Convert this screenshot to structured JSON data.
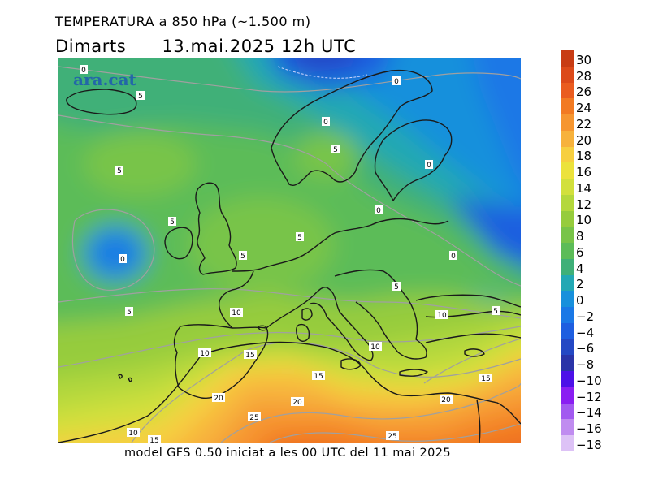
{
  "title": "TEMPERATURA a 850 hPa (~1.500 m)",
  "day": "Dimarts",
  "datetime": "13.mai.2025 12h UTC",
  "watermark": "ara.cat",
  "footer": "model GFS 0.50 iniciat a les 00 UTC del 11 mai 2025",
  "colorbar": {
    "bands": [
      {
        "label": "30",
        "color": "#c83c14"
      },
      {
        "label": "28",
        "color": "#dc4a1a"
      },
      {
        "label": "26",
        "color": "#ea5c1f"
      },
      {
        "label": "24",
        "color": "#f27a22"
      },
      {
        "label": "22",
        "color": "#f69630"
      },
      {
        "label": "20",
        "color": "#f7b23c"
      },
      {
        "label": "18",
        "color": "#f7cf40"
      },
      {
        "label": "16",
        "color": "#ece23c"
      },
      {
        "label": "14",
        "color": "#d2e03c"
      },
      {
        "label": "12",
        "color": "#b4d83c"
      },
      {
        "label": "10",
        "color": "#96cc3c"
      },
      {
        "label": "8",
        "color": "#78c448"
      },
      {
        "label": "6",
        "color": "#5cbc58"
      },
      {
        "label": "4",
        "color": "#3fb078"
      },
      {
        "label": "2",
        "color": "#22a8b4"
      },
      {
        "label": "0",
        "color": "#1890dc"
      },
      {
        "label": "−2",
        "color": "#1a78e6"
      },
      {
        "label": "−4",
        "color": "#1e5ee0"
      },
      {
        "label": "−6",
        "color": "#2448c4"
      },
      {
        "label": "−8",
        "color": "#2a34a8"
      },
      {
        "label": "−10",
        "color": "#4c10e8"
      },
      {
        "label": "−12",
        "color": "#8a1ef2"
      },
      {
        "label": "−14",
        "color": "#a25af0"
      },
      {
        "label": "−16",
        "color": "#c08cf0"
      },
      {
        "label": "−18",
        "color": "#ddc2f6"
      }
    ]
  },
  "contour_labels": [
    {
      "text": "0"
    },
    {
      "text": "5"
    },
    {
      "text": "0"
    },
    {
      "text": "0"
    },
    {
      "text": "5"
    },
    {
      "text": "0"
    },
    {
      "text": "5"
    },
    {
      "text": "5"
    },
    {
      "text": "0"
    },
    {
      "text": "0"
    },
    {
      "text": "5"
    },
    {
      "text": "5"
    },
    {
      "text": "0"
    },
    {
      "text": "5"
    },
    {
      "text": "5"
    },
    {
      "text": "10"
    },
    {
      "text": "10"
    },
    {
      "text": "5"
    },
    {
      "text": "10"
    },
    {
      "text": "15"
    },
    {
      "text": "10"
    },
    {
      "text": "15"
    },
    {
      "text": "15"
    },
    {
      "text": "20"
    },
    {
      "text": "20"
    },
    {
      "text": "20"
    },
    {
      "text": "25"
    },
    {
      "text": "25"
    },
    {
      "text": "10"
    },
    {
      "text": "15"
    }
  ]
}
